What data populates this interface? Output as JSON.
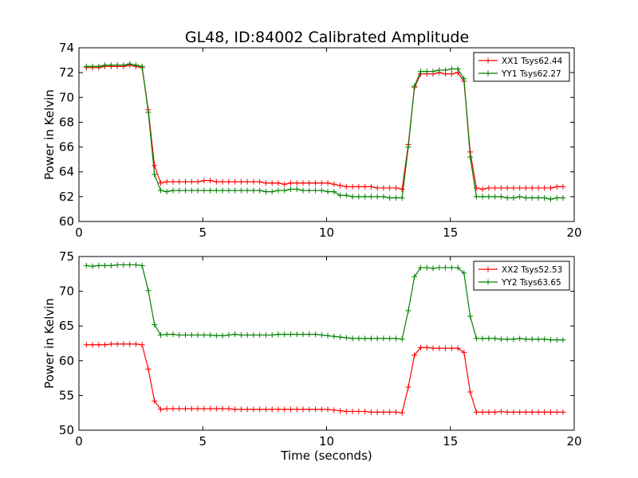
{
  "figure_title": "GL48, ID:84002 Calibrated Amplitude",
  "chart_data": [
    {
      "type": "line",
      "title": "GL48, ID:84002 Calibrated Amplitude",
      "xlabel": "",
      "ylabel": "Power in Kelvin",
      "xlim": [
        0,
        20
      ],
      "ylim": [
        60,
        74
      ],
      "xticks": [
        0,
        5,
        10,
        15,
        20
      ],
      "yticks": [
        60,
        62,
        64,
        66,
        68,
        70,
        72,
        74
      ],
      "grid": false,
      "legend_position": "top-right",
      "x": [
        0.3,
        0.55,
        0.8,
        1.05,
        1.3,
        1.55,
        1.8,
        2.05,
        2.3,
        2.55,
        2.8,
        3.05,
        3.3,
        3.55,
        3.8,
        4.05,
        4.3,
        4.55,
        4.8,
        5.05,
        5.3,
        5.55,
        5.8,
        6.05,
        6.3,
        6.55,
        6.8,
        7.05,
        7.3,
        7.55,
        7.8,
        8.05,
        8.3,
        8.55,
        8.8,
        9.05,
        9.3,
        9.55,
        9.8,
        10.05,
        10.3,
        10.55,
        10.8,
        11.05,
        11.3,
        11.55,
        11.8,
        12.05,
        12.3,
        12.55,
        12.8,
        13.05,
        13.3,
        13.55,
        13.8,
        14.05,
        14.3,
        14.55,
        14.8,
        15.05,
        15.3,
        15.55,
        15.8,
        16.05,
        16.3,
        16.55,
        16.8,
        17.05,
        17.3,
        17.55,
        17.8,
        18.05,
        18.3,
        18.55,
        18.8,
        19.05,
        19.3,
        19.55
      ],
      "series": [
        {
          "name": "XX1 Tsys62.44",
          "color": "#ff0000",
          "values": [
            72.4,
            72.4,
            72.4,
            72.5,
            72.5,
            72.5,
            72.5,
            72.6,
            72.5,
            72.4,
            69.0,
            64.5,
            63.1,
            63.2,
            63.2,
            63.2,
            63.2,
            63.2,
            63.2,
            63.3,
            63.3,
            63.2,
            63.2,
            63.2,
            63.2,
            63.2,
            63.2,
            63.2,
            63.2,
            63.1,
            63.1,
            63.1,
            63.0,
            63.1,
            63.1,
            63.1,
            63.1,
            63.1,
            63.1,
            63.1,
            63.0,
            62.9,
            62.8,
            62.8,
            62.8,
            62.8,
            62.8,
            62.7,
            62.7,
            62.7,
            62.7,
            62.6,
            66.2,
            70.8,
            71.9,
            71.9,
            71.9,
            72.0,
            71.9,
            71.9,
            72.0,
            71.3,
            65.6,
            62.7,
            62.6,
            62.7,
            62.7,
            62.7,
            62.7,
            62.7,
            62.7,
            62.7,
            62.7,
            62.7,
            62.7,
            62.7,
            62.8,
            62.8
          ]
        },
        {
          "name": "YY1 Tsys62.27",
          "color": "#008000",
          "values": [
            72.5,
            72.5,
            72.5,
            72.6,
            72.6,
            72.6,
            72.6,
            72.7,
            72.6,
            72.5,
            68.8,
            63.8,
            62.5,
            62.4,
            62.5,
            62.5,
            62.5,
            62.5,
            62.5,
            62.5,
            62.5,
            62.5,
            62.5,
            62.5,
            62.5,
            62.5,
            62.5,
            62.5,
            62.5,
            62.4,
            62.4,
            62.5,
            62.5,
            62.6,
            62.6,
            62.5,
            62.5,
            62.5,
            62.5,
            62.4,
            62.4,
            62.1,
            62.1,
            62.0,
            62.0,
            62.0,
            62.0,
            62.0,
            62.0,
            61.9,
            61.9,
            61.9,
            66.0,
            70.9,
            72.1,
            72.1,
            72.1,
            72.2,
            72.2,
            72.3,
            72.3,
            71.5,
            65.2,
            62.0,
            62.0,
            62.0,
            62.0,
            62.0,
            61.9,
            61.9,
            62.0,
            61.9,
            61.9,
            61.9,
            61.9,
            61.8,
            61.9,
            61.9
          ]
        }
      ]
    },
    {
      "type": "line",
      "title": "",
      "xlabel": "Time (seconds)",
      "ylabel": "Power in Kelvin",
      "xlim": [
        0,
        20
      ],
      "ylim": [
        50,
        75
      ],
      "xticks": [
        0,
        5,
        10,
        15,
        20
      ],
      "yticks": [
        50,
        55,
        60,
        65,
        70,
        75
      ],
      "grid": false,
      "legend_position": "top-right",
      "x": [
        0.3,
        0.55,
        0.8,
        1.05,
        1.3,
        1.55,
        1.8,
        2.05,
        2.3,
        2.55,
        2.8,
        3.05,
        3.3,
        3.55,
        3.8,
        4.05,
        4.3,
        4.55,
        4.8,
        5.05,
        5.3,
        5.55,
        5.8,
        6.05,
        6.3,
        6.55,
        6.8,
        7.05,
        7.3,
        7.55,
        7.8,
        8.05,
        8.3,
        8.55,
        8.8,
        9.05,
        9.3,
        9.55,
        9.8,
        10.05,
        10.3,
        10.55,
        10.8,
        11.05,
        11.3,
        11.55,
        11.8,
        12.05,
        12.3,
        12.55,
        12.8,
        13.05,
        13.3,
        13.55,
        13.8,
        14.05,
        14.3,
        14.55,
        14.8,
        15.05,
        15.3,
        15.55,
        15.8,
        16.05,
        16.3,
        16.55,
        16.8,
        17.05,
        17.3,
        17.55,
        17.8,
        18.05,
        18.3,
        18.55,
        18.8,
        19.05,
        19.3,
        19.55
      ],
      "series": [
        {
          "name": "XX2 Tsys52.53",
          "color": "#ff0000",
          "values": [
            62.3,
            62.3,
            62.3,
            62.3,
            62.4,
            62.4,
            62.4,
            62.4,
            62.4,
            62.3,
            58.8,
            54.2,
            53.0,
            53.1,
            53.1,
            53.1,
            53.1,
            53.1,
            53.1,
            53.1,
            53.1,
            53.1,
            53.1,
            53.1,
            53.0,
            53.0,
            53.0,
            53.0,
            53.0,
            53.0,
            53.0,
            53.0,
            53.0,
            53.0,
            53.0,
            53.0,
            53.0,
            53.0,
            53.0,
            53.0,
            52.9,
            52.8,
            52.7,
            52.7,
            52.7,
            52.7,
            52.6,
            52.6,
            52.6,
            52.6,
            52.6,
            52.5,
            56.2,
            60.8,
            61.9,
            61.9,
            61.8,
            61.8,
            61.8,
            61.8,
            61.8,
            61.2,
            55.5,
            52.6,
            52.6,
            52.6,
            52.6,
            52.7,
            52.6,
            52.6,
            52.6,
            52.6,
            52.6,
            52.6,
            52.6,
            52.6,
            52.6,
            52.6
          ]
        },
        {
          "name": "YY2 Tsys63.65",
          "color": "#008000",
          "values": [
            73.7,
            73.6,
            73.7,
            73.7,
            73.7,
            73.8,
            73.8,
            73.8,
            73.8,
            73.7,
            70.1,
            65.2,
            63.7,
            63.8,
            63.8,
            63.7,
            63.7,
            63.7,
            63.7,
            63.7,
            63.7,
            63.6,
            63.6,
            63.7,
            63.8,
            63.7,
            63.7,
            63.7,
            63.7,
            63.7,
            63.7,
            63.8,
            63.8,
            63.8,
            63.8,
            63.8,
            63.8,
            63.8,
            63.7,
            63.6,
            63.5,
            63.4,
            63.3,
            63.2,
            63.2,
            63.2,
            63.2,
            63.2,
            63.2,
            63.2,
            63.2,
            63.1,
            67.2,
            72.1,
            73.4,
            73.4,
            73.3,
            73.4,
            73.4,
            73.4,
            73.4,
            72.6,
            66.4,
            63.2,
            63.2,
            63.2,
            63.2,
            63.1,
            63.1,
            63.1,
            63.2,
            63.1,
            63.1,
            63.1,
            63.1,
            63.0,
            63.0,
            63.0
          ]
        }
      ]
    }
  ]
}
